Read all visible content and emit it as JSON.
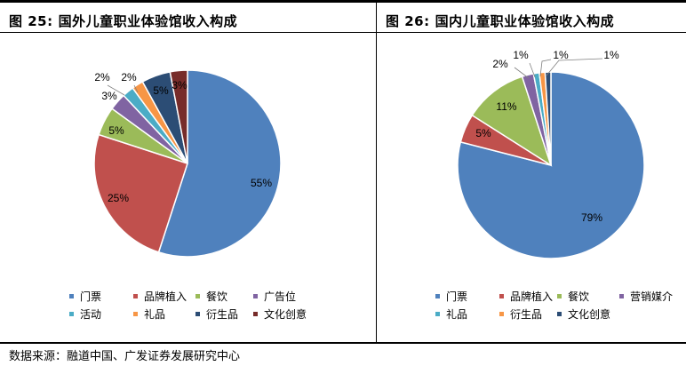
{
  "charts": [
    {
      "fig_label": "图 25:",
      "title": "国外儿童职业体验馆收入构成"
    },
    {
      "fig_label": "图 26:",
      "title": "国内儿童职业体验馆收入构成"
    }
  ],
  "chart_data": [
    {
      "type": "pie",
      "title": "国外儿童职业体验馆收入构成",
      "labels": [
        "门票",
        "品牌植入",
        "餐饮",
        "广告位",
        "活动",
        "礼品",
        "衍生品",
        "文化创意"
      ],
      "values": [
        55,
        25,
        5,
        3,
        2,
        2,
        5,
        3
      ],
      "value_labels": [
        "55%",
        "25%",
        "5%",
        "3%",
        "2%",
        "2%",
        "5%",
        "3%"
      ],
      "colors": [
        "#4F81BD",
        "#C0504D",
        "#9BBB59",
        "#8064A2",
        "#4BACC6",
        "#F79646",
        "#2C4D75",
        "#772C2A"
      ],
      "legend_position": "bottom"
    },
    {
      "type": "pie",
      "title": "国内儿童职业体验馆收入构成",
      "labels": [
        "门票",
        "品牌植入",
        "餐饮",
        "营销媒介",
        "礼品",
        "衍生品",
        "文化创意"
      ],
      "values": [
        79,
        5,
        11,
        2,
        1,
        1,
        1
      ],
      "value_labels": [
        "79%",
        "5%",
        "11%",
        "2%",
        "1%",
        "1%",
        "1%"
      ],
      "colors": [
        "#4F81BD",
        "#C0504D",
        "#9BBB59",
        "#8064A2",
        "#4BACC6",
        "#F79646",
        "#2C4D75"
      ],
      "legend_position": "bottom"
    }
  ],
  "source": "数据来源：融道中国、广发证券发展研究中心"
}
